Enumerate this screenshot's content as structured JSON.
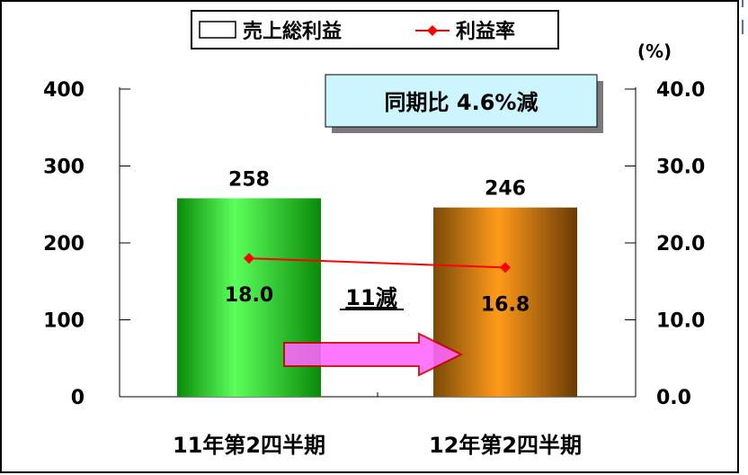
{
  "chart_data": {
    "type": "bar",
    "categories": [
      "11年第2四半期",
      "12年第2四半期"
    ],
    "series": [
      {
        "name": "売上総利益",
        "type": "bar",
        "axis": "left",
        "values": [
          258,
          246
        ],
        "value_labels": [
          "258",
          "246"
        ],
        "colors": [
          "#22cc22",
          "#e08a10"
        ]
      },
      {
        "name": "利益率",
        "type": "line",
        "axis": "right",
        "values": [
          18.0,
          16.8
        ],
        "value_labels": [
          "18.0",
          "16.8"
        ],
        "color": "#ff0000"
      }
    ],
    "ylim": [
      0,
      400
    ],
    "y_ticks": [
      "400",
      "300",
      "200",
      "100",
      "0"
    ],
    "y2lim": [
      0,
      40
    ],
    "y2_ticks": [
      "40.0",
      "30.0",
      "20.0",
      "10.0",
      "0.0"
    ],
    "y2_unit": "(%)",
    "legend_position": "top",
    "grid": false,
    "annotations": {
      "period_comparison": "同期比 4.6%減",
      "difference": "11減"
    },
    "colors": {
      "frame": "#000000",
      "line": "#ff0000",
      "callout_fill": "#ccf5ff",
      "arrow_fill": "#ff66ff",
      "arrow_stroke": "#cc0000"
    }
  }
}
